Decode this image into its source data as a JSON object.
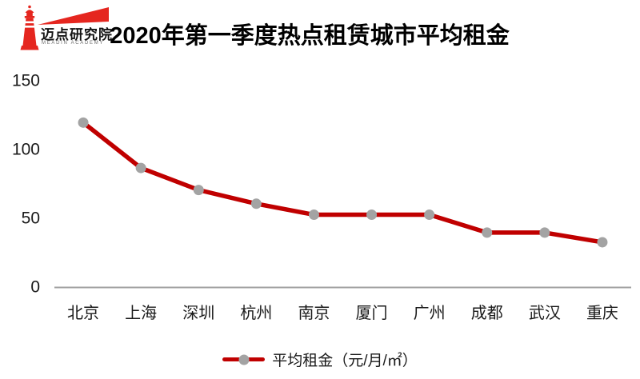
{
  "brand": {
    "name": "迈点研究院",
    "subtitle": "MEADIN ACADEMY",
    "logo_color": "#e5261f"
  },
  "chart_data": {
    "type": "line",
    "title": "2020年第一季度热点租赁城市平均租金",
    "categories": [
      "北京",
      "上海",
      "深圳",
      "杭州",
      "南京",
      "厦门",
      "广州",
      "成都",
      "武汉",
      "重庆"
    ],
    "series": [
      {
        "name": "平均租金（元/月/㎡）",
        "values": [
          119,
          86,
          70,
          60,
          52,
          52,
          52,
          39,
          39,
          32
        ]
      }
    ],
    "xlabel": "",
    "ylabel": "",
    "ylim": [
      0,
      150
    ],
    "yticks": [
      0,
      50,
      100,
      150
    ],
    "grid": false,
    "legend_position": "bottom",
    "colors": {
      "line": "#c00000",
      "marker": "#a3a3a3",
      "axis": "#a0a0a0",
      "text": "#1a1a1a"
    }
  }
}
